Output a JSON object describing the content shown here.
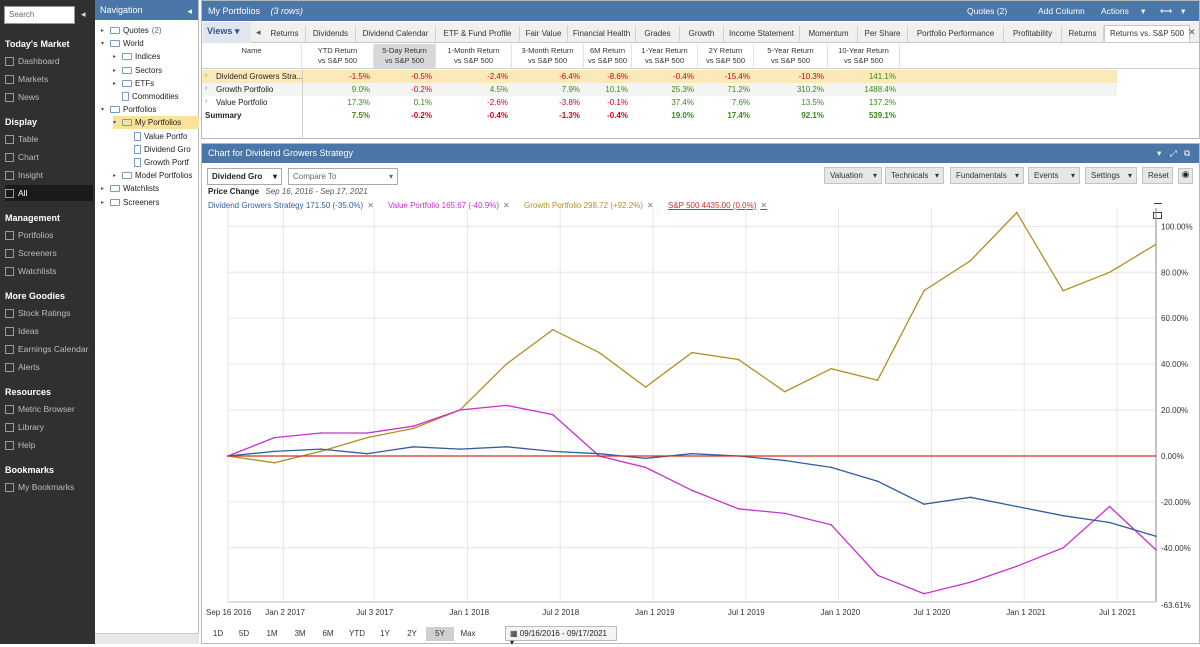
{
  "sidebar": {
    "search_placeholder": "Search",
    "sections": [
      {
        "title": "Today's Market",
        "items": [
          "Dashboard",
          "Markets",
          "News"
        ]
      },
      {
        "title": "Display",
        "items": [
          "Table",
          "Chart",
          "Insight",
          "All"
        ]
      },
      {
        "title": "Management",
        "items": [
          "Portfolios",
          "Screeners",
          "Watchlists"
        ]
      },
      {
        "title": "More Goodies",
        "items": [
          "Stock Ratings",
          "Ideas",
          "Earnings Calendar",
          "Alerts"
        ]
      },
      {
        "title": "Resources",
        "items": [
          "Metric Browser",
          "Library",
          "Help"
        ]
      },
      {
        "title": "Bookmarks",
        "items": [
          "My Bookmarks"
        ]
      }
    ],
    "active_item": "All"
  },
  "navigation": {
    "title": "Navigation",
    "tree": [
      {
        "label": "Quotes",
        "count": "(2)",
        "level": 0,
        "type": "list",
        "exp": "▸"
      },
      {
        "label": "World",
        "level": 0,
        "type": "folder",
        "exp": "▾"
      },
      {
        "label": "Indices",
        "level": 1,
        "type": "folder",
        "exp": "▸"
      },
      {
        "label": "Sectors",
        "level": 1,
        "type": "folder",
        "exp": "▸"
      },
      {
        "label": "ETFs",
        "level": 1,
        "type": "folder",
        "exp": "▸"
      },
      {
        "label": "Commodities",
        "level": 1,
        "type": "doc",
        "exp": ""
      },
      {
        "label": "Portfolios",
        "level": 0,
        "type": "folder",
        "exp": "▾"
      },
      {
        "label": "My Portfolios",
        "level": 1,
        "type": "folder",
        "exp": "▾",
        "selected": true
      },
      {
        "label": "Value Portfo",
        "level": 2,
        "type": "doc",
        "exp": ""
      },
      {
        "label": "Dividend Gro",
        "level": 2,
        "type": "doc",
        "exp": ""
      },
      {
        "label": "Growth Portf",
        "level": 2,
        "type": "doc",
        "exp": ""
      },
      {
        "label": "Model Portfolios",
        "level": 1,
        "type": "folder",
        "exp": "▸"
      },
      {
        "label": "Watchlists",
        "level": 0,
        "type": "folder",
        "exp": "▸"
      },
      {
        "label": "Screeners",
        "level": 0,
        "type": "folder",
        "exp": "▸"
      }
    ]
  },
  "portfolio": {
    "title": "My Portfolios",
    "rows_note": "(3 rows)",
    "header_buttons": {
      "quotes": "Quotes (2)",
      "add_column": "Add Column",
      "actions": "Actions"
    },
    "views_label": "Views",
    "tabs": [
      "Returns",
      "Dividends",
      "Dividend Calendar",
      "ETF & Fund Profile",
      "Fair Value",
      "Financial Health",
      "Grades",
      "Growth",
      "Income Statement",
      "Momentum",
      "Per Share",
      "Portfolio Performance",
      "Profitability",
      "Returns",
      "Returns vs. S&P 500"
    ],
    "active_tab": "Returns vs. S&P 500",
    "columns": [
      {
        "l1": "Name",
        "l2": ""
      },
      {
        "l1": "YTD Return",
        "l2": "vs S&P 500"
      },
      {
        "l1": "5-Day Return",
        "l2": "vs S&P 500"
      },
      {
        "l1": "1-Month Return",
        "l2": "vs S&P 500"
      },
      {
        "l1": "3-Month Return",
        "l2": "vs S&P 500"
      },
      {
        "l1": "6M Return",
        "l2": "vs S&P 500"
      },
      {
        "l1": "1-Year Return",
        "l2": "vs S&P 500"
      },
      {
        "l1": "2Y Return",
        "l2": "vs S&P 500"
      },
      {
        "l1": "5-Year Return",
        "l2": "vs S&P 500"
      },
      {
        "l1": "10-Year Return",
        "l2": "vs S&P 500"
      }
    ],
    "rows": [
      {
        "name": "Dividend Growers Stra...",
        "values": [
          "-1.5%",
          "-0.5%",
          "-2.4%",
          "-6.4%",
          "-8.6%",
          "-0.4%",
          "-15.4%",
          "-10.3%",
          "141.1%"
        ]
      },
      {
        "name": "Growth Portfolio",
        "values": [
          "9.0%",
          "-0.2%",
          "4.5%",
          "7.9%",
          "10.1%",
          "25.3%",
          "71.2%",
          "310.2%",
          "1488.4%"
        ]
      },
      {
        "name": "Value Portfolio",
        "values": [
          "17.3%",
          "0.1%",
          "-2.6%",
          "-3.8%",
          "-0.1%",
          "37.4%",
          "7.6%",
          "13.5%",
          "137.2%"
        ]
      }
    ],
    "summary": {
      "name": "Summary",
      "values": [
        "7.5%",
        "-0.2%",
        "-0.4%",
        "-1.3%",
        "-0.4%",
        "19.0%",
        "17.4%",
        "92.1%",
        "539.1%"
      ]
    }
  },
  "chart_panel": {
    "title": "Chart for Dividend Growers Strategy",
    "symbol_select": "Dividend Gro",
    "compare_placeholder": "Compare To",
    "toolbar": [
      "Valuation",
      "Technicals",
      "Fundamentals",
      "Events",
      "Settings",
      "Reset"
    ],
    "subtitle": "Price Change",
    "date_range_text": "Sep 16, 2016 - Sep 17, 2021",
    "legend": [
      {
        "label": "Dividend Growers Strategy 171.50 (-35.0%)",
        "color": "#2f5f9e"
      },
      {
        "label": "Value Portfolio 165.67 (-40.9%)",
        "color": "#c930c9"
      },
      {
        "label": "Growth Portfolio 298.72 (+92.2%)",
        "color": "#b18f22"
      },
      {
        "label": "S&P 500 4435.00 (0.0%)",
        "color": "#d23020"
      }
    ],
    "range_buttons": [
      "1D",
      "5D",
      "1M",
      "3M",
      "6M",
      "YTD",
      "1Y",
      "2Y",
      "5Y",
      "Max"
    ],
    "active_range": "5Y",
    "date_range_picker": "09/16/2016 - 09/17/2021"
  },
  "chart_data": {
    "type": "line",
    "title": "",
    "xlabel": "",
    "ylabel": "",
    "x_ticks": [
      "Sep 16 2016",
      "Jan 2 2017",
      "Jul 3 2017",
      "Jan 1 2018",
      "Jul 2 2018",
      "Jan 1 2019",
      "Jul 1 2019",
      "Jan 1 2020",
      "Jul 1 2020",
      "Jan 1 2021",
      "Jul 1 2021"
    ],
    "x_tick_pos": [
      0,
      0.298,
      0.788,
      1.29,
      1.79,
      2.29,
      2.79,
      3.29,
      3.79,
      4.29,
      4.79
    ],
    "y_ticks": [
      "100.00%",
      "80.00%",
      "60.00%",
      "40.00%",
      "20.00%",
      "0.00%",
      "-20.00%",
      "-40.00%"
    ],
    "y_tick_values": [
      100,
      80,
      60,
      40,
      20,
      0,
      -20,
      -40
    ],
    "y_min_label": "-63.61%",
    "ylim": [
      -63.61,
      108
    ],
    "xlim": [
      0,
      5.0
    ],
    "series": [
      {
        "name": "Dividend Growers Strategy",
        "color": "#2f5f9e",
        "x": [
          0,
          0.25,
          0.5,
          0.75,
          1.0,
          1.25,
          1.5,
          1.75,
          2.0,
          2.25,
          2.5,
          2.75,
          3.0,
          3.25,
          3.5,
          3.75,
          4.0,
          4.25,
          4.5,
          4.75,
          5.0
        ],
        "y": [
          0,
          2,
          3,
          1,
          4,
          3,
          4,
          2,
          1,
          -1,
          1,
          0,
          -2,
          -5,
          -11,
          -21,
          -18,
          -22,
          -26,
          -29,
          -35
        ]
      },
      {
        "name": "Value Portfolio",
        "color": "#c930c9",
        "x": [
          0,
          0.25,
          0.5,
          0.75,
          1.0,
          1.25,
          1.5,
          1.75,
          2.0,
          2.25,
          2.5,
          2.75,
          3.0,
          3.25,
          3.5,
          3.75,
          4.0,
          4.25,
          4.5,
          4.75,
          5.0
        ],
        "y": [
          0,
          8,
          10,
          10,
          13,
          20,
          22,
          18,
          0,
          -5,
          -15,
          -23,
          -25,
          -30,
          -52,
          -60,
          -55,
          -48,
          -40,
          -22,
          -40.9
        ]
      },
      {
        "name": "Growth Portfolio",
        "color": "#b18f22",
        "x": [
          0,
          0.25,
          0.5,
          0.75,
          1.0,
          1.25,
          1.5,
          1.75,
          2.0,
          2.25,
          2.5,
          2.75,
          3.0,
          3.25,
          3.5,
          3.75,
          4.0,
          4.25,
          4.5,
          4.75,
          5.0
        ],
        "y": [
          0,
          -3,
          2,
          8,
          12,
          20,
          40,
          55,
          45,
          30,
          45,
          42,
          28,
          38,
          33,
          72,
          85,
          106,
          72,
          80,
          92.2
        ]
      },
      {
        "name": "S&P 500",
        "color": "#d23020",
        "x": [
          0,
          5.0
        ],
        "y": [
          0,
          0
        ]
      }
    ]
  }
}
